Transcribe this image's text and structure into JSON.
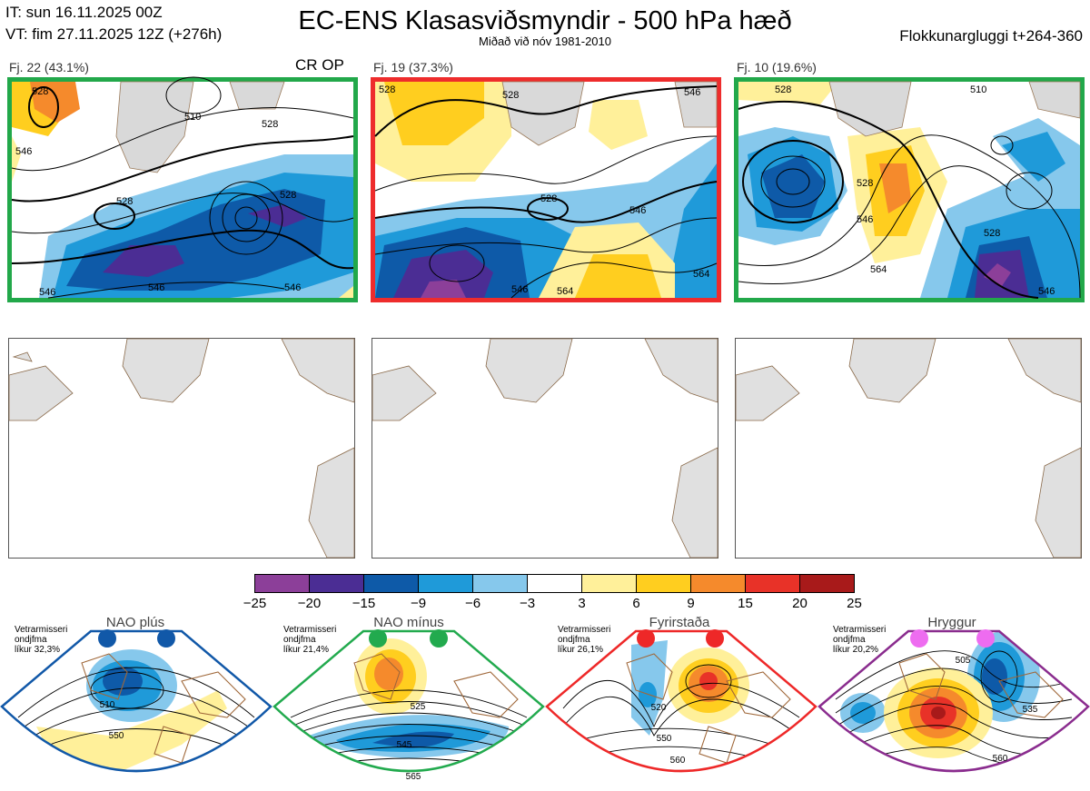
{
  "header": {
    "it": "IT: sun 16.11.2025 00Z",
    "vt": "VT: fim 27.11.2025 12Z  (+276h)",
    "title": "EC-ENS Klasasviðsmyndir - 500 hPa hæð",
    "subtitle": "Miðað við nóv 1981-2010",
    "window": "Flokkunargluggi t+264-360"
  },
  "clusters": [
    {
      "label": "Fj. 22 (43.1%)",
      "members": 22,
      "percent": 43.1,
      "border_color": "#22a84a",
      "extra_label": "CR OP",
      "contour_labels": [
        "528",
        "510",
        "528",
        "546",
        "528",
        "546",
        "546",
        "546",
        "528"
      ]
    },
    {
      "label": "Fj. 19 (37.3%)",
      "members": 19,
      "percent": 37.3,
      "border_color": "#ee2c2c",
      "extra_label": "",
      "contour_labels": [
        "528",
        "528",
        "528",
        "546",
        "546",
        "546",
        "564",
        "564"
      ]
    },
    {
      "label": "Fj. 10 (19.6%)",
      "members": 10,
      "percent": 19.6,
      "border_color": "#22a84a",
      "extra_label": "",
      "contour_labels": [
        "510",
        "528",
        "528",
        "546",
        "564",
        "528",
        "546"
      ]
    }
  ],
  "chart_data": {
    "type": "heatmap",
    "title": "EC-ENS Klasasviðsmyndir - 500 hPa hæð",
    "subtitle": "Miðað við nóv 1981-2010",
    "colorbar": {
      "ticks": [
        "−25",
        "−20",
        "−15",
        "−9",
        "−6",
        "−3",
        "3",
        "6",
        "9",
        "15",
        "20",
        "25"
      ],
      "tick_values": [
        -25,
        -20,
        -15,
        -9,
        -6,
        -3,
        3,
        6,
        9,
        15,
        20,
        25
      ],
      "colors": [
        "#8c3f99",
        "#4b2d94",
        "#0e5aa8",
        "#1f9ad9",
        "#86c8ec",
        "#ffffff",
        "#fff09a",
        "#ffce1f",
        "#f58a2c",
        "#e83228",
        "#a81a1a"
      ]
    },
    "cluster_frequencies": [
      {
        "cluster": "Fj. 22",
        "members": 22,
        "percent": 43.1
      },
      {
        "cluster": "Fj. 19",
        "members": 19,
        "percent": 37.3
      },
      {
        "cluster": "Fj. 10",
        "members": 10,
        "percent": 19.6
      }
    ],
    "regimes": [
      {
        "name": "NAO plús",
        "caption": [
          "Vetrarmisseri",
          "ondjfma",
          "líkur 32,3%"
        ],
        "probability": 32.3,
        "dot_color": "#1158a8",
        "border_color": "#1158a8",
        "contour_labels": [
          "510",
          "550"
        ]
      },
      {
        "name": "NAO mínus",
        "caption": [
          "Vetrarmisseri",
          "ondjfma",
          "líkur 21,4%"
        ],
        "probability": 21.4,
        "dot_color": "#22aa4e",
        "border_color": "#22aa4e",
        "contour_labels": [
          "525",
          "545",
          "565"
        ]
      },
      {
        "name": "Fyrirstaða",
        "caption": [
          "Vetrarmisseri",
          "ondjfma",
          "líkur 26,1%"
        ],
        "probability": 26.1,
        "dot_color": "#ee2828",
        "border_color": "#ee2828",
        "contour_labels": [
          "520",
          "550",
          "560"
        ]
      },
      {
        "name": "Hryggur",
        "caption": [
          "Vetrarmisseri",
          "ondjfma",
          "líkur 20,2%"
        ],
        "probability": 20.2,
        "dot_color": "#ee6cf0",
        "border_color": "#8a2c8e",
        "contour_labels": [
          "505",
          "535",
          "560"
        ]
      }
    ]
  }
}
